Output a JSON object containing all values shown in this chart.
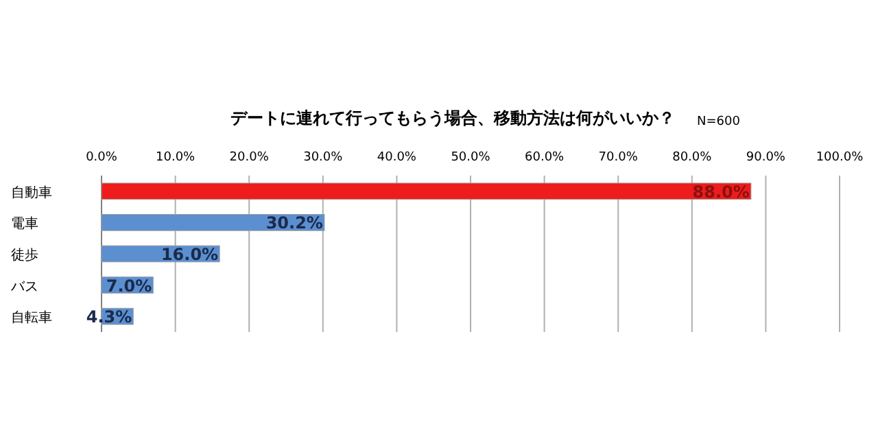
{
  "chart_data": {
    "type": "bar",
    "orientation": "horizontal",
    "title": "デートに連れて行ってもらう場合、移動方法は何がいいか？",
    "annotations": [
      "N=600"
    ],
    "categories": [
      "自動車",
      "電車",
      "徒歩",
      "バス",
      "自転車"
    ],
    "values": [
      88.0,
      30.2,
      16.0,
      7.0,
      4.3
    ],
    "colors": [
      "#ee1c1c",
      "#5b8fd0",
      "#5b8fd0",
      "#5b8fd0",
      "#5b8fd0"
    ],
    "value_labels": [
      "88.0%",
      "30.2%",
      "16.0%",
      "7.0%",
      "4.3%"
    ],
    "xlim": [
      0,
      100
    ],
    "xticks": [
      {
        "value": 0,
        "label": "0.0%"
      },
      {
        "value": 10,
        "label": "10.0%"
      },
      {
        "value": 20,
        "label": "20.0%"
      },
      {
        "value": 30,
        "label": "30.0%"
      },
      {
        "value": 40,
        "label": "40.0%"
      },
      {
        "value": 50,
        "label": "50.0%"
      },
      {
        "value": 60,
        "label": "60.0%"
      },
      {
        "value": 70,
        "label": "70.0%"
      },
      {
        "value": 80,
        "label": "80.0%"
      },
      {
        "value": 90,
        "label": "90.0%"
      },
      {
        "value": 100,
        "label": "100.0%"
      }
    ],
    "grid": "x"
  }
}
